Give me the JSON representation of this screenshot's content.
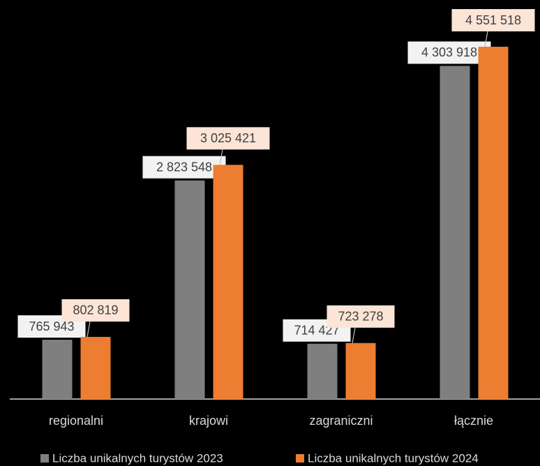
{
  "chart_data": {
    "type": "bar",
    "categories": [
      "regionalni",
      "krajowi",
      "zagraniczni",
      "łącznie"
    ],
    "series": [
      {
        "name": "Liczba unikalnych turystów 2023",
        "color": "#7f7f7f",
        "values": [
          765943,
          2823548,
          714427,
          4303918
        ],
        "value_labels": [
          "765 943",
          "2 823 548",
          "714 427",
          "4 303 918"
        ]
      },
      {
        "name": "Liczba unikalnych turystów 2024",
        "color": "#ed7d31",
        "values": [
          802819,
          3025421,
          723278,
          4551518
        ],
        "value_labels": [
          "802 819",
          "3 025 421",
          "723 278",
          "4 551 518"
        ]
      }
    ]
  }
}
